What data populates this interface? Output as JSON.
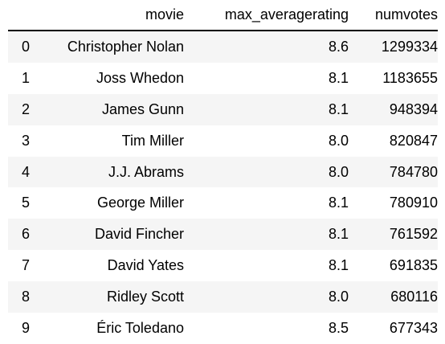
{
  "table": {
    "columns": [
      "movie",
      "max_averagerating",
      "numvotes"
    ],
    "rows": [
      {
        "index": "0",
        "movie": "Christopher Nolan",
        "max_averagerating": "8.6",
        "numvotes": "1299334"
      },
      {
        "index": "1",
        "movie": "Joss Whedon",
        "max_averagerating": "8.1",
        "numvotes": "1183655"
      },
      {
        "index": "2",
        "movie": "James Gunn",
        "max_averagerating": "8.1",
        "numvotes": "948394"
      },
      {
        "index": "3",
        "movie": "Tim Miller",
        "max_averagerating": "8.0",
        "numvotes": "820847"
      },
      {
        "index": "4",
        "movie": "J.J. Abrams",
        "max_averagerating": "8.0",
        "numvotes": "784780"
      },
      {
        "index": "5",
        "movie": "George Miller",
        "max_averagerating": "8.1",
        "numvotes": "780910"
      },
      {
        "index": "6",
        "movie": "David Fincher",
        "max_averagerating": "8.1",
        "numvotes": "761592"
      },
      {
        "index": "7",
        "movie": "David Yates",
        "max_averagerating": "8.1",
        "numvotes": "691835"
      },
      {
        "index": "8",
        "movie": "Ridley Scott",
        "max_averagerating": "8.0",
        "numvotes": "680116"
      },
      {
        "index": "9",
        "movie": "Éric Toledano",
        "max_averagerating": "8.5",
        "numvotes": "677343"
      }
    ]
  }
}
